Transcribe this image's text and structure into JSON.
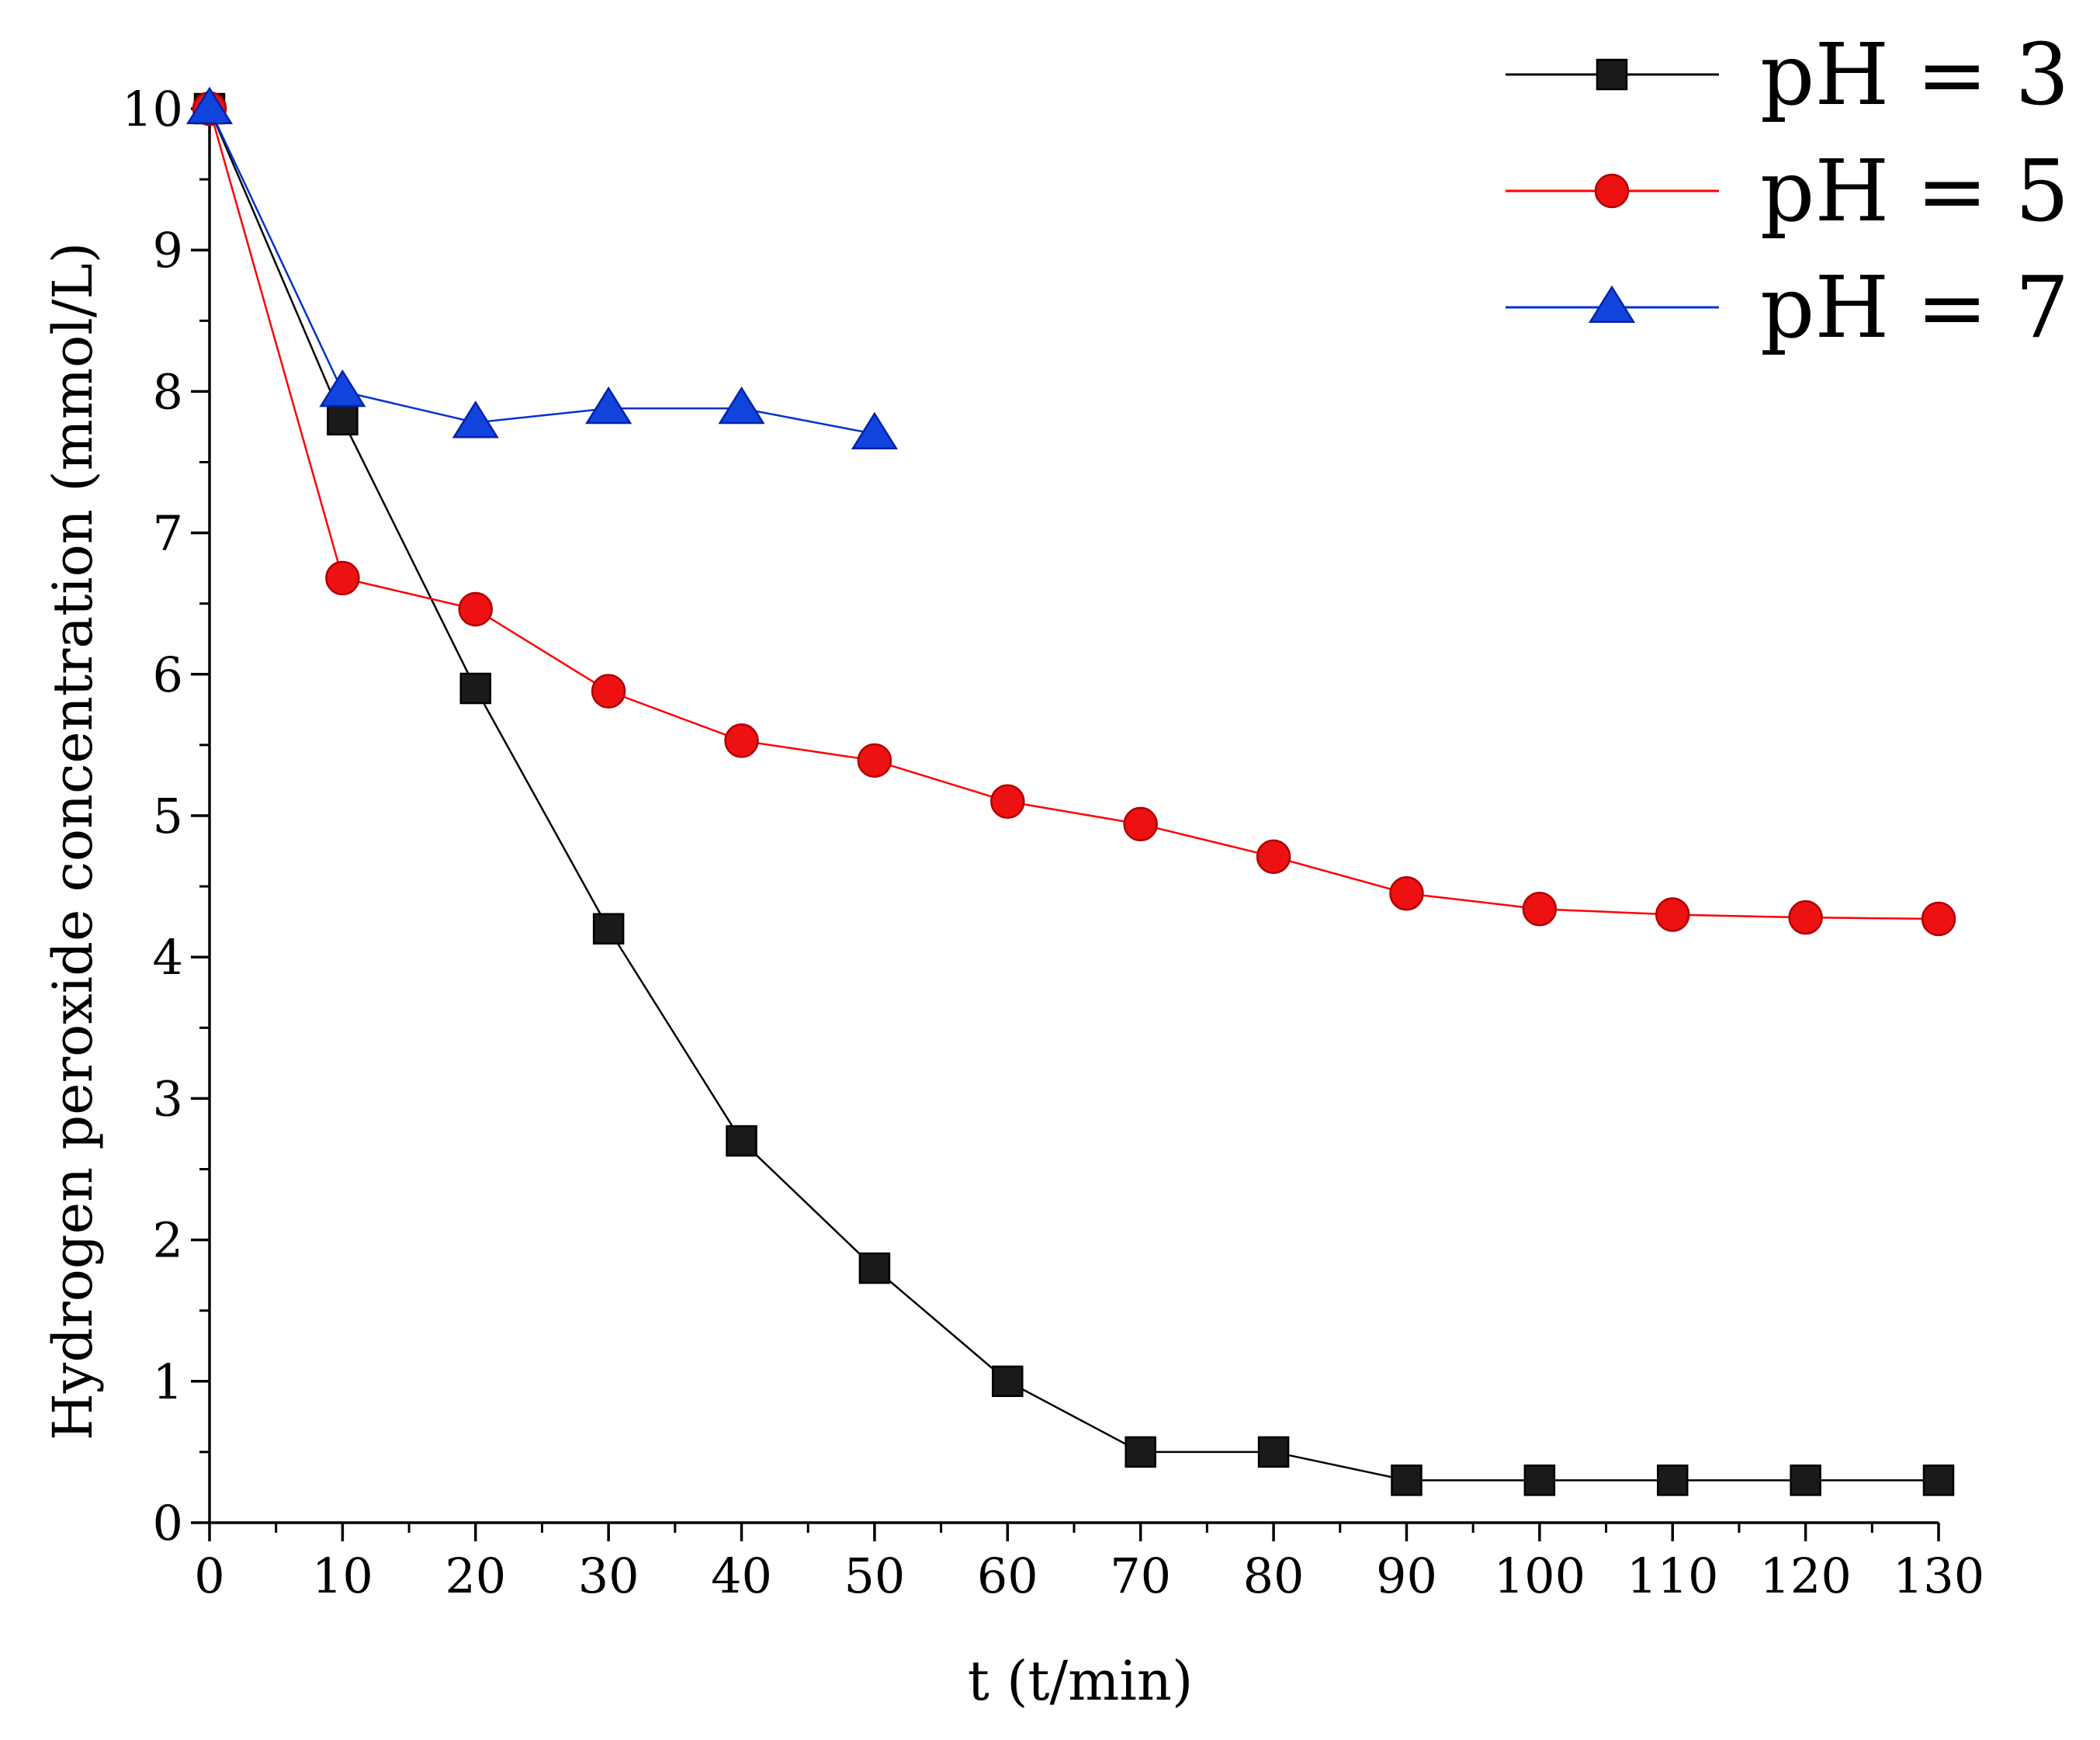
{
  "chart_data": {
    "type": "line",
    "title": "",
    "xlabel": "t (t/min)",
    "ylabel": "Hydrogen peroxide concentration (mmol/L)",
    "xlim": [
      0,
      130
    ],
    "ylim": [
      0,
      10
    ],
    "x_ticks": [
      0,
      10,
      20,
      30,
      40,
      50,
      60,
      70,
      80,
      90,
      100,
      110,
      120,
      130
    ],
    "y_ticks": [
      0,
      1,
      2,
      3,
      4,
      5,
      6,
      7,
      8,
      9,
      10
    ],
    "x_tick_labels": [
      "0",
      "10",
      "20",
      "30",
      "40",
      "50",
      "60",
      "70",
      "80",
      "90",
      "100",
      "110",
      "120",
      "130"
    ],
    "y_tick_labels": [
      "0",
      "1",
      "2",
      "3",
      "4",
      "5",
      "6",
      "7",
      "8",
      "9",
      "10"
    ],
    "grid": false,
    "legend_position": "top-right",
    "series": [
      {
        "name": "pH = 3",
        "color": "#000000",
        "marker": "square",
        "marker_fill": "#1a1a1a",
        "x": [
          0,
          10,
          20,
          30,
          40,
          50,
          60,
          70,
          80,
          90,
          100,
          110,
          120,
          130
        ],
        "values": [
          10,
          7.8,
          5.9,
          4.2,
          2.7,
          1.8,
          1.0,
          0.5,
          0.5,
          0.3,
          0.3,
          0.3,
          0.3,
          0.3
        ]
      },
      {
        "name": "pH = 5",
        "color": "#ff0000",
        "marker": "circle",
        "marker_fill": "#ee1111",
        "x": [
          0,
          10,
          20,
          30,
          40,
          50,
          60,
          70,
          80,
          90,
          100,
          110,
          120,
          130
        ],
        "values": [
          10,
          6.68,
          6.46,
          5.88,
          5.53,
          5.39,
          5.1,
          4.94,
          4.71,
          4.45,
          4.34,
          4.3,
          4.28,
          4.27
        ]
      },
      {
        "name": "pH = 7",
        "color": "#0033cc",
        "marker": "triangle",
        "marker_fill": "#1144dd",
        "x": [
          0,
          10,
          20,
          30,
          40,
          50
        ],
        "values": [
          10,
          8.0,
          7.78,
          7.88,
          7.88,
          7.7
        ]
      }
    ]
  }
}
